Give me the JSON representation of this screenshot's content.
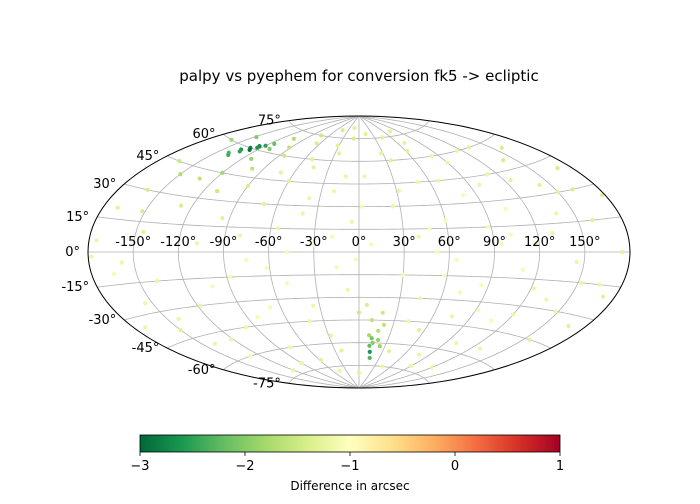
{
  "chart_data": {
    "type": "scatter",
    "projection": "aitoff",
    "title": "palpy vs pyephem for conversion fk5 -> ecliptic",
    "grid": true,
    "lon_ticks": [
      -150,
      -120,
      -90,
      -60,
      -30,
      0,
      30,
      60,
      90,
      120,
      150
    ],
    "lat_ticks": [
      -75,
      -60,
      -45,
      -30,
      -15,
      0,
      15,
      30,
      45,
      60,
      75
    ],
    "lon_tick_labels": [
      "-150°",
      "-120°",
      "-90°",
      "-60°",
      "-30°",
      "0°",
      "30°",
      "60°",
      "90°",
      "120°",
      "150°"
    ],
    "lat_tick_labels": [
      "-75°",
      "-60°",
      "-45°",
      "-30°",
      "-15°",
      "0°",
      "15°",
      "30°",
      "45°",
      "60°",
      "75°"
    ],
    "colormap": "RdYlGn_r",
    "colorbar": {
      "label": "Difference in arcsec",
      "range": [
        -3,
        1
      ],
      "ticks": [
        -3,
        -2,
        -1,
        0,
        1
      ],
      "tick_labels": [
        "−3",
        "−2",
        "−1",
        "0",
        "1"
      ],
      "orientation": "horizontal",
      "placement": "bottom"
    },
    "colormap_stops": [
      [
        0.0,
        "#006837"
      ],
      [
        0.1,
        "#1a9850"
      ],
      [
        0.2,
        "#66bd63"
      ],
      [
        0.3,
        "#a6d96a"
      ],
      [
        0.4,
        "#d9ef8b"
      ],
      [
        0.5,
        "#ffffbf"
      ],
      [
        0.6,
        "#fee08b"
      ],
      [
        0.7,
        "#fdae61"
      ],
      [
        0.8,
        "#f46d43"
      ],
      [
        0.9,
        "#d73027"
      ],
      [
        1.0,
        "#a50026"
      ]
    ],
    "points": [
      [
        -150,
        40,
        -1.7
      ],
      [
        -140,
        55,
        -2.3
      ],
      [
        -135,
        58,
        -2.6
      ],
      [
        -130,
        60,
        -2.8
      ],
      [
        -125,
        62,
        -2.7
      ],
      [
        -120,
        63,
        -2.5
      ],
      [
        -115,
        65,
        -2.2
      ],
      [
        -110,
        62,
        -2.0
      ],
      [
        -160,
        30,
        -1.4
      ],
      [
        -170,
        20,
        -1.3
      ],
      [
        -175,
        5,
        -1.2
      ],
      [
        -165,
        -10,
        -1.1
      ],
      [
        -155,
        -25,
        -1.2
      ],
      [
        -150,
        -40,
        -1.3
      ],
      [
        -140,
        -50,
        -1.2
      ],
      [
        -130,
        -60,
        -1.1
      ],
      [
        -120,
        45,
        -1.8
      ],
      [
        -110,
        35,
        -1.5
      ],
      [
        -100,
        50,
        -1.6
      ],
      [
        -95,
        20,
        -1.3
      ],
      [
        -90,
        40,
        -1.4
      ],
      [
        -85,
        60,
        -1.5
      ],
      [
        -80,
        10,
        -1.2
      ],
      [
        -75,
        -5,
        -1.1
      ],
      [
        -70,
        30,
        -1.3
      ],
      [
        -65,
        70,
        -1.4
      ],
      [
        -60,
        45,
        -1.3
      ],
      [
        -55,
        15,
        -1.2
      ],
      [
        -50,
        -20,
        -1.1
      ],
      [
        -45,
        55,
        -1.3
      ],
      [
        -40,
        25,
        -1.2
      ],
      [
        -35,
        -35,
        -1.2
      ],
      [
        -30,
        5,
        -1.1
      ],
      [
        -25,
        65,
        -1.3
      ],
      [
        -20,
        40,
        -1.2
      ],
      [
        -15,
        -10,
        -1.1
      ],
      [
        -10,
        75,
        -1.4
      ],
      [
        -5,
        20,
        -1.2
      ],
      [
        0,
        -40,
        -1.5
      ],
      [
        5,
        50,
        -1.2
      ],
      [
        10,
        -55,
        -1.8
      ],
      [
        12,
        -62,
        -2.2
      ],
      [
        14,
        -66,
        -2.6
      ],
      [
        15,
        -60,
        -2.0
      ],
      [
        18,
        -52,
        -1.7
      ],
      [
        20,
        -58,
        -1.9
      ],
      [
        22,
        -48,
        -1.6
      ],
      [
        16,
        -70,
        -2.3
      ],
      [
        25,
        30,
        -1.2
      ],
      [
        30,
        -15,
        -1.1
      ],
      [
        35,
        60,
        -1.3
      ],
      [
        40,
        10,
        -1.2
      ],
      [
        45,
        -30,
        -1.2
      ],
      [
        50,
        45,
        -1.2
      ],
      [
        55,
        -50,
        -1.3
      ],
      [
        60,
        20,
        -1.1
      ],
      [
        65,
        -5,
        -1.1
      ],
      [
        70,
        70,
        -1.3
      ],
      [
        75,
        -40,
        -1.2
      ],
      [
        80,
        35,
        -1.1
      ],
      [
        85,
        -20,
        -1.1
      ],
      [
        90,
        55,
        -1.2
      ],
      [
        95,
        5,
        -1.1
      ],
      [
        100,
        -55,
        -1.2
      ],
      [
        105,
        25,
        -1.1
      ],
      [
        110,
        -10,
        -1.1
      ],
      [
        115,
        60,
        -1.2
      ],
      [
        120,
        -35,
        -1.2
      ],
      [
        125,
        40,
        -1.3
      ],
      [
        130,
        10,
        -1.2
      ],
      [
        135,
        -25,
        -1.2
      ],
      [
        140,
        50,
        -1.4
      ],
      [
        145,
        -5,
        -1.2
      ],
      [
        150,
        30,
        -1.3
      ],
      [
        155,
        -45,
        -1.3
      ],
      [
        160,
        15,
        -1.3
      ],
      [
        165,
        -15,
        -1.2
      ],
      [
        170,
        40,
        -1.4
      ],
      [
        175,
        0,
        -1.3
      ],
      [
        -178,
        -2,
        -1.2
      ],
      [
        -145,
        10,
        -1.3
      ],
      [
        -138,
        -15,
        -1.2
      ],
      [
        -128,
        25,
        -1.4
      ],
      [
        -118,
        -30,
        -1.2
      ],
      [
        -108,
        5,
        -1.2
      ],
      [
        -98,
        -45,
        -1.2
      ],
      [
        -88,
        -15,
        -1.1
      ],
      [
        -78,
        -60,
        -1.2
      ],
      [
        -68,
        -35,
        -1.1
      ],
      [
        -58,
        -70,
        -1.3
      ],
      [
        -48,
        0,
        -1.1
      ],
      [
        -38,
        35,
        -1.2
      ],
      [
        -28,
        -55,
        -1.3
      ],
      [
        -18,
        10,
        -1.1
      ],
      [
        -8,
        -25,
        -1.2
      ],
      [
        2,
        30,
        -1.1
      ],
      [
        8,
        5,
        -1.1
      ],
      [
        28,
        65,
        -1.3
      ],
      [
        38,
        -65,
        -1.3
      ],
      [
        48,
        15,
        -1.1
      ],
      [
        58,
        -15,
        -1.1
      ],
      [
        68,
        45,
        -1.2
      ],
      [
        78,
        -65,
        -1.2
      ],
      [
        88,
        15,
        -1.1
      ],
      [
        98,
        40,
        -1.2
      ],
      [
        108,
        -40,
        -1.1
      ],
      [
        118,
        5,
        -1.1
      ],
      [
        128,
        -55,
        -1.2
      ],
      [
        138,
        20,
        -1.2
      ],
      [
        148,
        -30,
        -1.2
      ],
      [
        158,
        55,
        -1.4
      ],
      [
        168,
        -35,
        -1.3
      ],
      [
        -165,
        45,
        -1.5
      ],
      [
        -158,
        -5,
        -1.2
      ],
      [
        -148,
        65,
        -2.0
      ],
      [
        -142,
        -35,
        -1.2
      ],
      [
        -132,
        40,
        -1.6
      ],
      [
        -122,
        -50,
        -1.2
      ],
      [
        -112,
        55,
        -1.9
      ],
      [
        -102,
        -20,
        -1.1
      ],
      [
        -92,
        65,
        -1.6
      ],
      [
        -82,
        -40,
        -1.1
      ],
      [
        -72,
        50,
        -1.3
      ],
      [
        -62,
        -10,
        -1.1
      ],
      [
        -52,
        60,
        -1.3
      ],
      [
        -42,
        -45,
        -1.2
      ],
      [
        -32,
        70,
        -1.3
      ],
      [
        -22,
        -65,
        -1.3
      ],
      [
        -12,
        50,
        -1.2
      ],
      [
        -2,
        -5,
        -1.1
      ],
      [
        6,
        -35,
        -1.4
      ],
      [
        11,
        -45,
        -1.6
      ],
      [
        19,
        -40,
        -1.5
      ],
      [
        24,
        -62,
        -1.9
      ],
      [
        32,
        40,
        -1.2
      ],
      [
        42,
        -45,
        -1.2
      ],
      [
        52,
        0,
        -1.1
      ],
      [
        62,
        65,
        -1.3
      ],
      [
        72,
        -25,
        -1.1
      ],
      [
        82,
        60,
        -1.2
      ],
      [
        92,
        -35,
        -1.1
      ],
      [
        102,
        10,
        -1.1
      ],
      [
        112,
        45,
        -1.2
      ],
      [
        122,
        -20,
        -1.2
      ],
      [
        132,
        60,
        -1.3
      ],
      [
        142,
        35,
        -1.3
      ],
      [
        152,
        -15,
        -1.2
      ],
      [
        162,
        30,
        -1.4
      ],
      [
        172,
        -20,
        -1.3
      ],
      [
        178,
        25,
        -1.4
      ],
      [
        -172,
        -35,
        -1.2
      ],
      [
        -162,
        60,
        -1.8
      ],
      [
        -152,
        20,
        -1.4
      ],
      [
        -105,
        70,
        -1.7
      ],
      [
        -75,
        75,
        -1.5
      ],
      [
        -45,
        80,
        -1.4
      ],
      [
        -15,
        82,
        -1.3
      ],
      [
        15,
        78,
        -1.3
      ],
      [
        45,
        75,
        -1.3
      ],
      [
        75,
        78,
        -1.3
      ],
      [
        -90,
        -70,
        -1.2
      ],
      [
        -45,
        -78,
        -1.2
      ],
      [
        0,
        -80,
        -1.3
      ],
      [
        45,
        -75,
        -1.2
      ],
      [
        90,
        -72,
        -1.2
      ],
      [
        -120,
        -72,
        -1.2
      ],
      [
        120,
        -70,
        -1.2
      ],
      [
        -133,
        57,
        -2.5
      ],
      [
        -127,
        59,
        -2.9
      ],
      [
        -124,
        61,
        -2.6
      ],
      [
        -137,
        54,
        -2.4
      ],
      [
        13,
        -57,
        -2.1
      ]
    ]
  }
}
